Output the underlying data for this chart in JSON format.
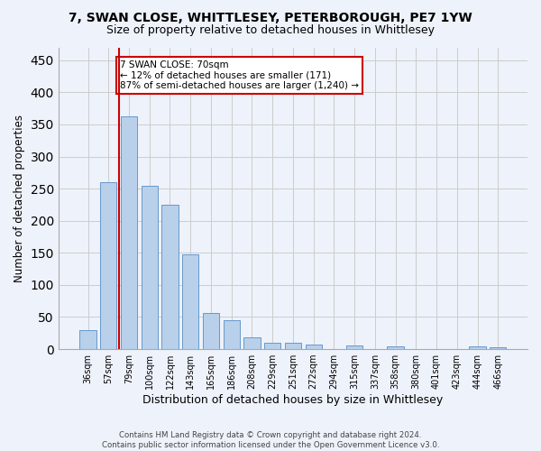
{
  "title1": "7, SWAN CLOSE, WHITTLESEY, PETERBOROUGH, PE7 1YW",
  "title2": "Size of property relative to detached houses in Whittlesey",
  "xlabel": "Distribution of detached houses by size in Whittlesey",
  "ylabel": "Number of detached properties",
  "bar_color": "#b8d0ea",
  "bar_edge_color": "#6699cc",
  "background_color": "#eef2fa",
  "categories": [
    "36sqm",
    "57sqm",
    "79sqm",
    "100sqm",
    "122sqm",
    "143sqm",
    "165sqm",
    "186sqm",
    "208sqm",
    "229sqm",
    "251sqm",
    "272sqm",
    "294sqm",
    "315sqm",
    "337sqm",
    "358sqm",
    "380sqm",
    "401sqm",
    "423sqm",
    "444sqm",
    "466sqm"
  ],
  "values": [
    30,
    260,
    363,
    255,
    225,
    148,
    57,
    45,
    18,
    10,
    10,
    7,
    0,
    6,
    0,
    4,
    0,
    0,
    0,
    4,
    3
  ],
  "ylim": [
    0,
    470
  ],
  "yticks": [
    0,
    50,
    100,
    150,
    200,
    250,
    300,
    350,
    400,
    450
  ],
  "property_line_x": 1.5,
  "annotation_text": "7 SWAN CLOSE: 70sqm\n← 12% of detached houses are smaller (171)\n87% of semi-detached houses are larger (1,240) →",
  "annotation_box_color": "#ffffff",
  "annotation_border_color": "#cc0000",
  "footer_text": "Contains HM Land Registry data © Crown copyright and database right 2024.\nContains public sector information licensed under the Open Government Licence v3.0.",
  "grid_color": "#cccccc",
  "line_color": "#cc0000"
}
